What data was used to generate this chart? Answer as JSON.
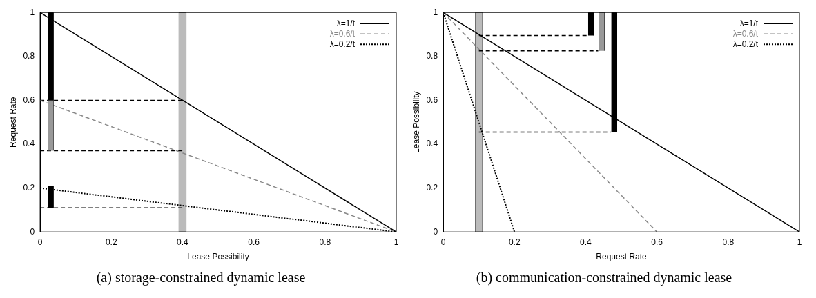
{
  "chart_data": [
    {
      "type": "line",
      "title": "(a) storage-constrained dynamic lease",
      "xlabel": "Lease Possibility",
      "ylabel": "Request Rate",
      "xlim": [
        0,
        1
      ],
      "ylim": [
        0,
        1
      ],
      "xticks": [
        0,
        0.2,
        0.4,
        0.6,
        0.8,
        1
      ],
      "yticks": [
        0,
        0.2,
        0.4,
        0.6,
        0.8,
        1
      ],
      "legend": "top right",
      "bands": [
        {
          "axis": "x",
          "from": 0.39,
          "to": 0.41,
          "color": "#bbbbbb"
        }
      ],
      "series": [
        {
          "name": "λ=1/t",
          "color": "#000000",
          "line_style": "solid",
          "x": [
            0,
            1
          ],
          "values": [
            1,
            0
          ]
        },
        {
          "name": "λ=0.6/t",
          "color": "#888888",
          "line_style": "dashed",
          "x": [
            0,
            1
          ],
          "values": [
            0.6,
            0
          ]
        },
        {
          "name": "λ=0.2/t",
          "color": "#000000",
          "line_style": "dotted",
          "x": [
            0,
            1
          ],
          "values": [
            0.2,
            0
          ]
        },
        {
          "color": "#000000",
          "line_style": "dashed",
          "x": [
            0,
            0.4
          ],
          "values": [
            0.6,
            0.6
          ]
        },
        {
          "color": "#000000",
          "line_style": "dashed",
          "x": [
            0,
            0.4
          ],
          "values": [
            0.37,
            0.37
          ]
        },
        {
          "color": "#000000",
          "line_style": "dashed",
          "x": [
            0,
            0.4
          ],
          "values": [
            0.11,
            0.11
          ]
        },
        {
          "type": "bar",
          "color": "#000000",
          "x": [
            0.03
          ],
          "base": [
            0.6
          ],
          "values": [
            0.4
          ]
        },
        {
          "type": "bar",
          "color": "#999999",
          "x": [
            0.03
          ],
          "base": [
            0.37
          ],
          "values": [
            0.23
          ]
        },
        {
          "type": "bar",
          "color": "#000000",
          "x": [
            0.03
          ],
          "base": [
            0.11
          ],
          "values": [
            0.1
          ]
        }
      ]
    },
    {
      "type": "line",
      "title": "(b) communication-constrained dynamic lease",
      "xlabel": "Request Rate",
      "ylabel": "Lease Possibility",
      "xlim": [
        0,
        1
      ],
      "ylim": [
        0,
        1
      ],
      "xticks": [
        0,
        0.2,
        0.4,
        0.6,
        0.8,
        1
      ],
      "yticks": [
        0,
        0.2,
        0.4,
        0.6,
        0.8,
        1
      ],
      "legend": "top right",
      "bands": [
        {
          "axis": "x",
          "from": 0.09,
          "to": 0.11,
          "color": "#bbbbbb"
        }
      ],
      "series": [
        {
          "name": "λ=1/t",
          "color": "#000000",
          "line_style": "solid",
          "x": [
            0,
            1
          ],
          "values": [
            1,
            0
          ]
        },
        {
          "name": "λ=0.6/t",
          "color": "#888888",
          "line_style": "dashed",
          "x": [
            0,
            0.6
          ],
          "values": [
            1,
            0
          ]
        },
        {
          "name": "λ=0.2/t",
          "color": "#000000",
          "line_style": "dotted",
          "x": [
            0,
            0.2
          ],
          "values": [
            1,
            0
          ]
        },
        {
          "color": "#000000",
          "line_style": "dashed",
          "x": [
            0.1,
            0.405
          ],
          "values": [
            0.895,
            0.895
          ]
        },
        {
          "color": "#000000",
          "line_style": "dashed",
          "x": [
            0.1,
            0.435
          ],
          "values": [
            0.825,
            0.825
          ]
        },
        {
          "color": "#000000",
          "line_style": "dashed",
          "x": [
            0.1,
            0.47
          ],
          "values": [
            0.455,
            0.455
          ]
        },
        {
          "type": "bar",
          "color": "#000000",
          "x": [
            0.415
          ],
          "base": [
            0.895
          ],
          "values": [
            0.105
          ]
        },
        {
          "type": "bar",
          "color": "#999999",
          "x": [
            0.445
          ],
          "base": [
            0.825
          ],
          "values": [
            0.175
          ]
        },
        {
          "type": "bar",
          "color": "#000000",
          "x": [
            0.48
          ],
          "base": [
            0.455
          ],
          "values": [
            0.545
          ]
        }
      ]
    }
  ]
}
